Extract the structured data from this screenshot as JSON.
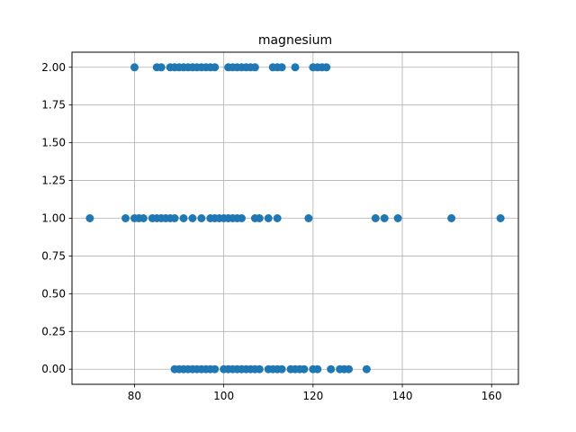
{
  "chart_data": {
    "type": "scatter",
    "title": "magnesium",
    "xlabel": "",
    "ylabel": "",
    "xlim": [
      66,
      166
    ],
    "ylim": [
      -0.1,
      2.1
    ],
    "xticks": [
      "80",
      "100",
      "120",
      "140",
      "160"
    ],
    "yticks": [
      "0.00",
      "0.25",
      "0.50",
      "0.75",
      "1.00",
      "1.25",
      "1.50",
      "1.75",
      "2.00"
    ],
    "grid": true,
    "marker_color": "#1f77b4",
    "series": [
      {
        "x": [
          89,
          90,
          91,
          92,
          93,
          94,
          95,
          96,
          97,
          98,
          100,
          101,
          102,
          103,
          104,
          105,
          106,
          107,
          108,
          110,
          111,
          112,
          113,
          115,
          116,
          117,
          118,
          120,
          121,
          124,
          126,
          127,
          128,
          132
        ],
        "y": [
          0,
          0,
          0,
          0,
          0,
          0,
          0,
          0,
          0,
          0,
          0,
          0,
          0,
          0,
          0,
          0,
          0,
          0,
          0,
          0,
          0,
          0,
          0,
          0,
          0,
          0,
          0,
          0,
          0,
          0,
          0,
          0,
          0,
          0
        ]
      },
      {
        "x": [
          70,
          78,
          80,
          81,
          82,
          84,
          85,
          86,
          87,
          88,
          89,
          91,
          93,
          95,
          97,
          98,
          99,
          100,
          101,
          102,
          103,
          104,
          107,
          108,
          110,
          112,
          119,
          134,
          136,
          139,
          151,
          162
        ],
        "y": [
          1,
          1,
          1,
          1,
          1,
          1,
          1,
          1,
          1,
          1,
          1,
          1,
          1,
          1,
          1,
          1,
          1,
          1,
          1,
          1,
          1,
          1,
          1,
          1,
          1,
          1,
          1,
          1,
          1,
          1,
          1,
          1
        ]
      },
      {
        "x": [
          80,
          85,
          86,
          88,
          89,
          90,
          91,
          92,
          93,
          94,
          95,
          96,
          97,
          98,
          101,
          102,
          103,
          104,
          105,
          106,
          107,
          111,
          112,
          113,
          116,
          120,
          121,
          122,
          123
        ],
        "y": [
          2,
          2,
          2,
          2,
          2,
          2,
          2,
          2,
          2,
          2,
          2,
          2,
          2,
          2,
          2,
          2,
          2,
          2,
          2,
          2,
          2,
          2,
          2,
          2,
          2,
          2,
          2,
          2,
          2
        ]
      }
    ]
  }
}
